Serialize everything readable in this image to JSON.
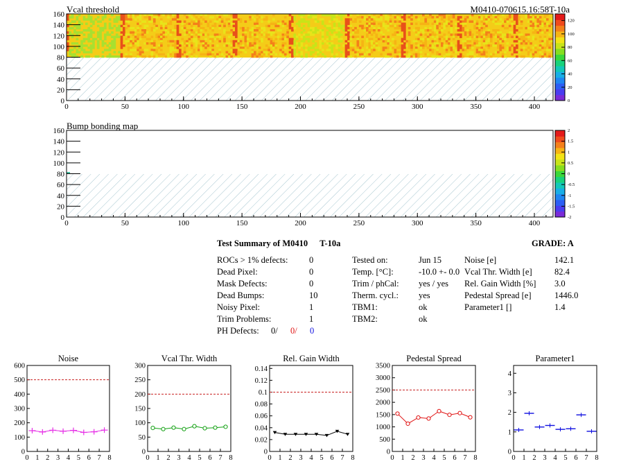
{
  "header": {
    "title": "Vcal threshold",
    "run_label": "M0410-070615.16:58T-10a"
  },
  "heatmap_vcal": {
    "title": "Vcal threshold",
    "x_ticks": [
      "0",
      "50",
      "100",
      "150",
      "200",
      "250",
      "300",
      "350",
      "400"
    ],
    "y_ticks": [
      "0",
      "20",
      "40",
      "60",
      "80",
      "100",
      "120",
      "140",
      "160"
    ],
    "scale_ticks": [
      "0",
      "20",
      "40",
      "60",
      "80",
      "100",
      "120"
    ]
  },
  "heatmap_bump": {
    "title": "Bump bonding map",
    "x_ticks": [
      "0",
      "50",
      "100",
      "150",
      "200",
      "250",
      "300",
      "350",
      "400"
    ],
    "y_ticks": [
      "0",
      "20",
      "40",
      "60",
      "80",
      "100",
      "120",
      "140",
      "160"
    ],
    "scale_ticks": [
      "-2",
      "-1.5",
      "-1",
      "-0.5",
      "0",
      "0.5",
      "1",
      "1.5",
      "2"
    ]
  },
  "summary": {
    "title": "Test Summary of M0410",
    "temp_tag": "T-10a",
    "grade_label": "GRADE:  A",
    "col1": [
      {
        "label": "ROCs > 1% defects:",
        "value": "0"
      },
      {
        "label": "Dead Pixel:",
        "value": "0"
      },
      {
        "label": "Mask Defects:",
        "value": "0"
      },
      {
        "label": "Dead Bumps:",
        "value": "10"
      },
      {
        "label": "Noisy Pixel:",
        "value": "1"
      },
      {
        "label": "Trim Problems:",
        "value": "1"
      }
    ],
    "ph_defects": {
      "label": "PH Defects:",
      "v1": "0/",
      "v2": "0/",
      "v3": "0"
    },
    "col2": [
      {
        "label": "Tested on:",
        "value": "Jun 15"
      },
      {
        "label": "Temp. [°C]:",
        "value": "-10.0 +- 0.0"
      },
      {
        "label": "Trim / phCal:",
        "value": "yes / yes"
      },
      {
        "label": "Therm. cycl.:",
        "value": "yes"
      },
      {
        "label": "TBM1:",
        "value": "ok"
      },
      {
        "label": "TBM2:",
        "value": "ok"
      }
    ],
    "col3": [
      {
        "label": "Noise [e]",
        "value": "142.1"
      },
      {
        "label": "Vcal Thr. Width [e]",
        "value": "82.4"
      },
      {
        "label": "Rel. Gain Width [%]",
        "value": "3.0"
      },
      {
        "label": "Pedestal Spread [e]",
        "value": "1446.0"
      },
      {
        "label": "Parameter1 []",
        "value": "1.4"
      }
    ]
  },
  "colors": {
    "noise": "#e62ee6",
    "vcal": "#10a010",
    "gain": "#000000",
    "pedestal": "#e01010",
    "param": "#1010e0",
    "limit": "#c81e1e"
  },
  "chart_data": [
    {
      "type": "scatter",
      "title": "Noise",
      "x_ticks": [
        "0",
        "1",
        "2",
        "3",
        "4",
        "5",
        "6",
        "7",
        "8"
      ],
      "y_ticks": [
        "0",
        "100",
        "200",
        "300",
        "400",
        "500",
        "600"
      ],
      "xlim": [
        0,
        8
      ],
      "ylim": [
        0,
        600
      ],
      "limit": 500,
      "x": [
        0.5,
        1.5,
        2.5,
        3.5,
        4.5,
        5.5,
        6.5,
        7.5
      ],
      "values": [
        145,
        136,
        148,
        141,
        147,
        133,
        137,
        149
      ],
      "connected": true,
      "marker": "cross"
    },
    {
      "type": "line",
      "title": "Vcal Thr. Width",
      "x_ticks": [
        "0",
        "1",
        "2",
        "3",
        "4",
        "5",
        "6",
        "7",
        "8"
      ],
      "y_ticks": [
        "0",
        "50",
        "100",
        "150",
        "200",
        "250",
        "300"
      ],
      "xlim": [
        0,
        8
      ],
      "ylim": [
        0,
        300
      ],
      "limit": 200,
      "x": [
        0.5,
        1.5,
        2.5,
        3.5,
        4.5,
        5.5,
        6.5,
        7.5
      ],
      "values": [
        82,
        78,
        83,
        78,
        88,
        81,
        83,
        86
      ],
      "connected": true,
      "marker": "circle"
    },
    {
      "type": "line",
      "title": "Rel. Gain Width",
      "x_ticks": [
        "0",
        "1",
        "2",
        "3",
        "4",
        "5",
        "6",
        "7",
        "8"
      ],
      "y_ticks": [
        "0",
        "0.02",
        "0.04",
        "0.06",
        "0.08",
        "0.1",
        "0.12",
        "0.14"
      ],
      "xlim": [
        0,
        8
      ],
      "ylim": [
        0,
        0.145
      ],
      "limit": 0.1,
      "x": [
        0.5,
        1.5,
        2.5,
        3.5,
        4.5,
        5.5,
        6.5,
        7.5
      ],
      "values": [
        0.032,
        0.029,
        0.029,
        0.029,
        0.029,
        0.027,
        0.034,
        0.029
      ],
      "connected": true,
      "marker": "triangle"
    },
    {
      "type": "line",
      "title": "Pedestal Spread",
      "x_ticks": [
        "0",
        "1",
        "2",
        "3",
        "4",
        "5",
        "6",
        "7",
        "8"
      ],
      "y_ticks": [
        "0",
        "500",
        "1000",
        "1500",
        "2000",
        "2500",
        "3000",
        "3500"
      ],
      "xlim": [
        0,
        8
      ],
      "ylim": [
        0,
        3500
      ],
      "limit": 2500,
      "x": [
        0.5,
        1.5,
        2.5,
        3.5,
        4.5,
        5.5,
        6.5,
        7.5
      ],
      "values": [
        1540,
        1130,
        1380,
        1340,
        1640,
        1490,
        1560,
        1390
      ],
      "connected": true,
      "marker": "open-circle"
    },
    {
      "type": "scatter",
      "title": "Parameter1",
      "x_ticks": [
        "0",
        "1",
        "2",
        "3",
        "4",
        "5",
        "6",
        "7",
        "8"
      ],
      "y_ticks": [
        "0",
        "1",
        "2",
        "3",
        "4"
      ],
      "xlim": [
        0,
        8
      ],
      "ylim": [
        0,
        4.4
      ],
      "limit": null,
      "x": [
        0.5,
        1.5,
        2.5,
        3.5,
        4.5,
        5.5,
        6.5,
        7.5
      ],
      "values": [
        1.1,
        1.95,
        1.25,
        1.33,
        1.13,
        1.16,
        1.87,
        1.03
      ],
      "connected": false,
      "marker": "hline"
    }
  ]
}
